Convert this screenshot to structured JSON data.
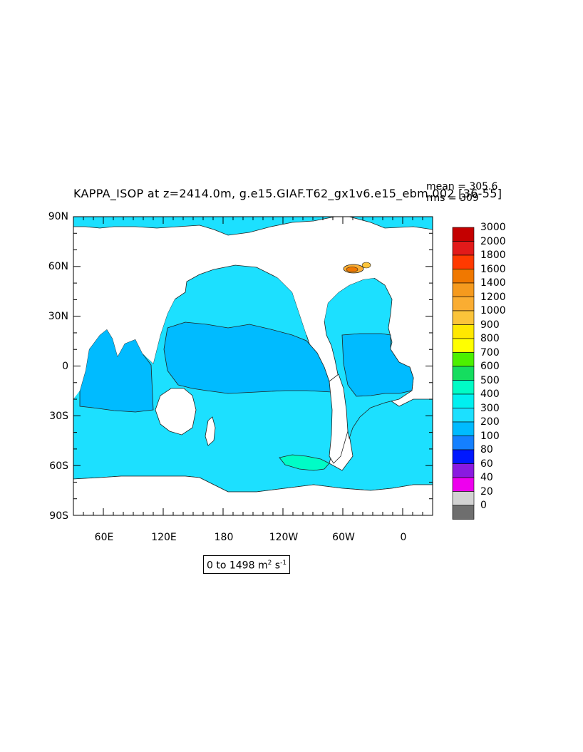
{
  "title": "KAPPA_ISOP at z=2414.0m, g.e15.GIAF.T62_gx1v6.e15_ebm.002 [36-55]",
  "stats": {
    "mean": "mean = 305.6",
    "rms": "rms = 309"
  },
  "range_label": {
    "prefix": "0 to 1498 m",
    "sup1": "2",
    "mid": " s",
    "sup2": "-1"
  },
  "lat_labels": [
    "90N",
    "60N",
    "30N",
    "0",
    "30S",
    "60S",
    "90S"
  ],
  "lon_labels": [
    "60E",
    "120E",
    "180",
    "120W",
    "60W",
    "0"
  ],
  "colorbar": {
    "levels": [
      "3000",
      "2000",
      "1800",
      "1600",
      "1400",
      "1200",
      "1000",
      "900",
      "800",
      "700",
      "600",
      "500",
      "400",
      "300",
      "200",
      "100",
      "80",
      "60",
      "40",
      "20",
      "0"
    ],
    "colors": [
      "#c40000",
      "#e21a1a",
      "#ff3a00",
      "#f07800",
      "#f59a1e",
      "#faad32",
      "#fbc43a",
      "#ffe800",
      "#ffff00",
      "#4cf000",
      "#15dd5f",
      "#00fcc6",
      "#00f0f0",
      "#1ce0ff",
      "#00bbff",
      "#1580ff",
      "#0018ff",
      "#8a1ae0",
      "#ee00ee",
      "#d2d2d2",
      "#6e6e6e"
    ]
  },
  "map_colors": {
    "ocean_300_400": "#1ce0ff",
    "ocean_200_300": "#00bbff",
    "ocean_400_500": "#00fcc6",
    "land": "#ffffff"
  }
}
